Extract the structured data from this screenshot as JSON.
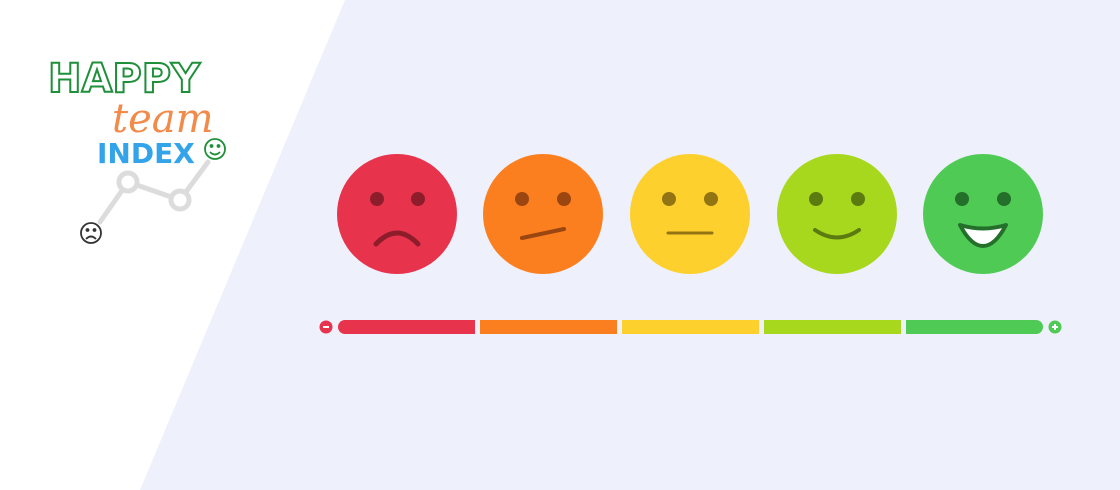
{
  "logo": {
    "line1": "HAPPY",
    "line2": "team",
    "line3": "INDEX"
  }
}
